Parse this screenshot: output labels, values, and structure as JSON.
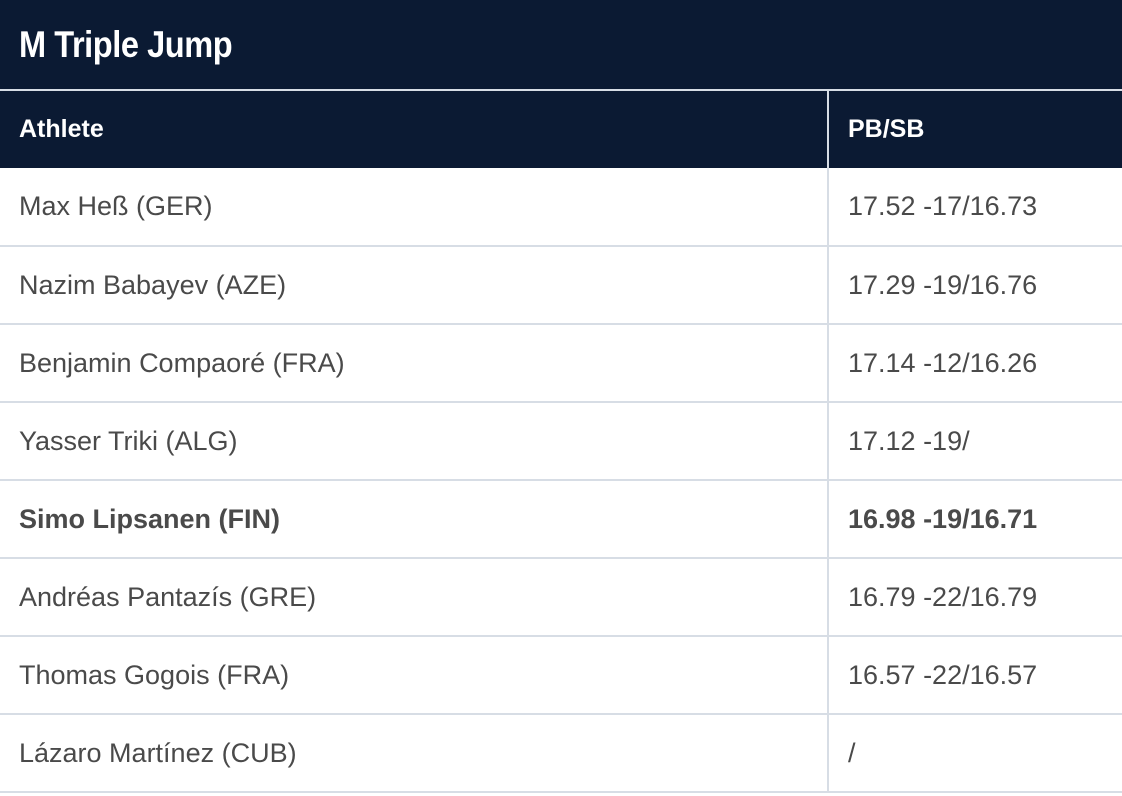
{
  "title": "M Triple Jump",
  "columns": {
    "athlete": "Athlete",
    "pb_sb": "PB/SB"
  },
  "rows": [
    {
      "athlete": "Max Heß (GER)",
      "pb_sb": "17.52 -17/16.73",
      "bold": false
    },
    {
      "athlete": "Nazim Babayev (AZE)",
      "pb_sb": "17.29 -19/16.76",
      "bold": false
    },
    {
      "athlete": "Benjamin Compaoré (FRA)",
      "pb_sb": "17.14 -12/16.26",
      "bold": false
    },
    {
      "athlete": "Yasser Triki (ALG)",
      "pb_sb": "17.12 -19/",
      "bold": false
    },
    {
      "athlete": "Simo Lipsanen (FIN)",
      "pb_sb": "16.98 -19/16.71",
      "bold": true
    },
    {
      "athlete": "Andréas Pantazís (GRE)",
      "pb_sb": "16.79 -22/16.79",
      "bold": false
    },
    {
      "athlete": "Thomas Gogois (FRA)",
      "pb_sb": "16.57 -22/16.57",
      "bold": false
    },
    {
      "athlete": "Lázaro Martínez (CUB)",
      "pb_sb": "/",
      "bold": false
    }
  ],
  "colors": {
    "header_bg": "#0b1a33",
    "header_text": "#ffffff",
    "body_text": "#4a4a4a",
    "divider": "#d7dde5"
  }
}
